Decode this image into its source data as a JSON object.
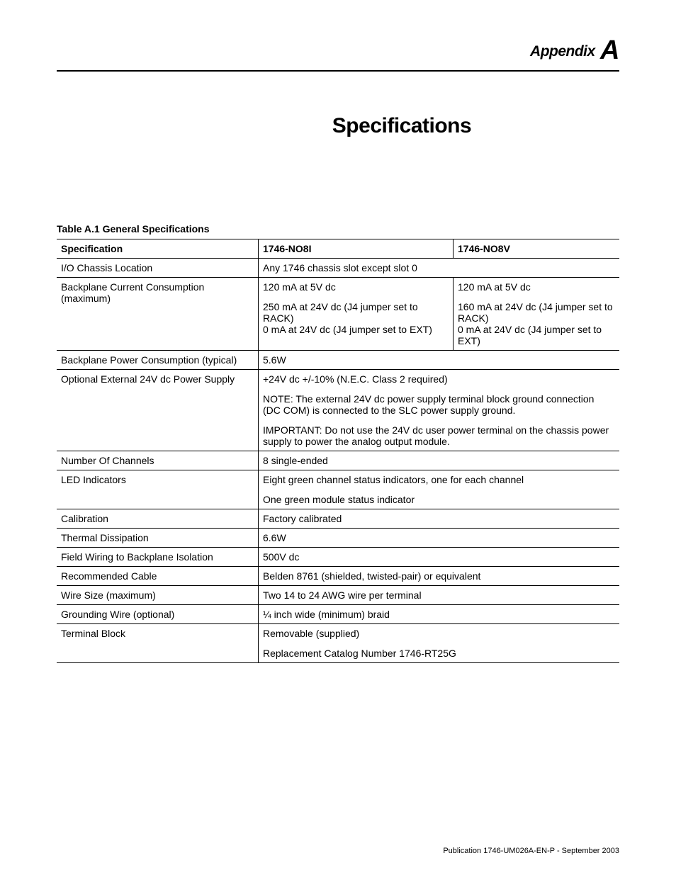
{
  "header": {
    "appendix_word": "Appendix",
    "appendix_letter": "A"
  },
  "title": "Specifications",
  "table": {
    "caption": "Table A.1 General Specifications",
    "columns": {
      "spec": "Specification",
      "c1": "1746-NO8I",
      "c2": "1746-NO8V"
    },
    "rows": {
      "chassis": {
        "label": "I/O Chassis Location",
        "value": "Any 1746 chassis slot except slot 0"
      },
      "backplane_current": {
        "label": "Backplane Current Consumption (maximum)",
        "c1_line1": "120 mA at 5V dc",
        "c1_line2": "250 mA at 24V dc (J4 jumper set to RACK)",
        "c1_line3": "0 mA at 24V dc (J4 jumper set to EXT)",
        "c2_line1": "120 mA at 5V dc",
        "c2_line2": "160 mA at 24V dc (J4 jumper set to RACK)",
        "c2_line3": "0 mA at 24V dc (J4 jumper set to EXT)"
      },
      "backplane_power": {
        "label": "Backplane Power Consumption (typical)",
        "value": "5.6W"
      },
      "optional_ext": {
        "label": "Optional External 24V dc Power Supply",
        "line1": "+24V dc +/-10% (N.E.C. Class 2 required)",
        "line2": "NOTE: The external 24V dc power supply terminal block ground connection (DC COM) is connected to the SLC power supply ground.",
        "line3": "IMPORTANT: Do not use the 24V dc user power terminal on the chassis power supply to power the analog output module."
      },
      "num_channels": {
        "label": "Number Of Channels",
        "value": "8 single-ended"
      },
      "led": {
        "label": "LED Indicators",
        "line1": "Eight green channel status indicators, one for each channel",
        "line2": "One green module status indicator"
      },
      "calibration": {
        "label": "Calibration",
        "value": "Factory calibrated"
      },
      "thermal": {
        "label": "Thermal Dissipation",
        "value": "6.6W"
      },
      "isolation": {
        "label": "Field Wiring to Backplane Isolation",
        "value": "500V dc"
      },
      "cable": {
        "label": "Recommended Cable",
        "value": "Belden 8761 (shielded, twisted-pair) or equivalent"
      },
      "wire": {
        "label": "Wire Size (maximum)",
        "value": "Two 14 to 24 AWG wire per terminal"
      },
      "grounding": {
        "label": "Grounding Wire (optional)",
        "value": "¼ inch wide (minimum) braid"
      },
      "terminal": {
        "label": "Terminal Block",
        "line1": "Removable (supplied)",
        "line2": "Replacement Catalog Number 1746-RT25G"
      }
    }
  },
  "footer": "Publication 1746-UM026A-EN-P - September 2003"
}
